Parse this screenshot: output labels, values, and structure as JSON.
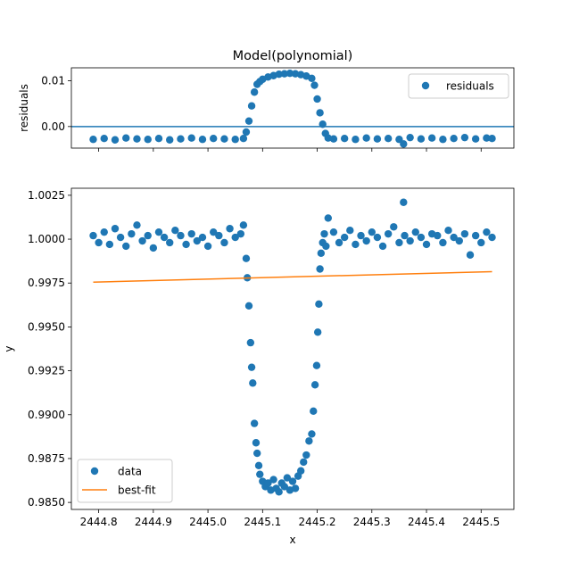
{
  "chart_data": [
    {
      "type": "scatter",
      "title": "Model(polynomial)",
      "xlabel": "",
      "ylabel": "residuals",
      "xlim": [
        2444.75,
        2445.56
      ],
      "ylim": [
        -0.0047,
        0.0128
      ],
      "x_ticks": [
        2444.8,
        2444.9,
        2445.0,
        2445.1,
        2445.2,
        2445.3,
        2445.4,
        2445.5
      ],
      "x_tick_labels_visible": false,
      "y_ticks": [
        0.0,
        0.01
      ],
      "y_tick_labels": [
        "0.00",
        "0.01"
      ],
      "grid": false,
      "legend": {
        "placement": "upper-right",
        "entries": [
          "residuals"
        ]
      },
      "zero_line": {
        "y": 0.0,
        "color": "#1f77b4"
      },
      "series": [
        {
          "name": "residuals",
          "kind": "markers",
          "color": "#1f77b4",
          "x": [
            2444.79,
            2444.81,
            2444.83,
            2444.85,
            2444.87,
            2444.89,
            2444.91,
            2444.93,
            2444.95,
            2444.97,
            2444.99,
            2445.01,
            2445.03,
            2445.05,
            2445.065,
            2445.07,
            2445.075,
            2445.08,
            2445.085,
            2445.09,
            2445.095,
            2445.1,
            2445.11,
            2445.12,
            2445.13,
            2445.14,
            2445.15,
            2445.16,
            2445.17,
            2445.18,
            2445.19,
            2445.195,
            2445.2,
            2445.205,
            2445.21,
            2445.215,
            2445.22,
            2445.23,
            2445.25,
            2445.27,
            2445.29,
            2445.31,
            2445.33,
            2445.35,
            2445.358,
            2445.37,
            2445.39,
            2445.41,
            2445.43,
            2445.45,
            2445.47,
            2445.49,
            2445.51,
            2445.52
          ],
          "y": [
            -0.0028,
            -0.0026,
            -0.0029,
            -0.0025,
            -0.0027,
            -0.0028,
            -0.0026,
            -0.0029,
            -0.0027,
            -0.0025,
            -0.0028,
            -0.0026,
            -0.0027,
            -0.0028,
            -0.0026,
            -0.0012,
            0.0012,
            0.0045,
            0.0075,
            0.0092,
            0.0098,
            0.0103,
            0.0108,
            0.0111,
            0.0114,
            0.0115,
            0.0116,
            0.0115,
            0.0113,
            0.011,
            0.0105,
            0.009,
            0.006,
            0.003,
            0.0005,
            -0.0015,
            -0.0025,
            -0.0027,
            -0.0026,
            -0.0028,
            -0.0025,
            -0.0027,
            -0.0026,
            -0.0028,
            -0.0038,
            -0.0024,
            -0.0027,
            -0.0025,
            -0.0028,
            -0.0026,
            -0.0024,
            -0.0027,
            -0.0025,
            -0.0026
          ]
        }
      ]
    },
    {
      "type": "scatter",
      "title": "",
      "xlabel": "x",
      "ylabel": "y",
      "xlim": [
        2444.75,
        2445.56
      ],
      "ylim": [
        0.9846,
        1.0029
      ],
      "x_ticks": [
        2444.8,
        2444.9,
        2445.0,
        2445.1,
        2445.2,
        2445.3,
        2445.4,
        2445.5
      ],
      "x_tick_labels": [
        "2444.8",
        "2444.9",
        "2445.0",
        "2445.1",
        "2445.2",
        "2445.3",
        "2445.4",
        "2445.5"
      ],
      "y_ticks": [
        0.985,
        0.9875,
        0.99,
        0.9925,
        0.995,
        0.9975,
        1.0,
        1.0025
      ],
      "y_tick_labels": [
        "0.9850",
        "0.9875",
        "0.9900",
        "0.9925",
        "0.9950",
        "0.9975",
        "1.0000",
        "1.0025"
      ],
      "grid": false,
      "legend": {
        "placement": "lower-left",
        "entries": [
          "data",
          "best-fit"
        ]
      },
      "series": [
        {
          "name": "data",
          "kind": "markers",
          "color": "#1f77b4",
          "x": [
            2444.79,
            2444.8,
            2444.81,
            2444.82,
            2444.83,
            2444.84,
            2444.85,
            2444.86,
            2444.87,
            2444.88,
            2444.89,
            2444.9,
            2444.91,
            2444.92,
            2444.93,
            2444.94,
            2444.95,
            2444.96,
            2444.97,
            2444.98,
            2444.99,
            2445.0,
            2445.01,
            2445.02,
            2445.03,
            2445.04,
            2445.05,
            2445.06,
            2445.065,
            2445.07,
            2445.072,
            2445.075,
            2445.078,
            2445.08,
            2445.082,
            2445.085,
            2445.088,
            2445.09,
            2445.093,
            2445.095,
            2445.1,
            2445.105,
            2445.11,
            2445.115,
            2445.12,
            2445.125,
            2445.13,
            2445.135,
            2445.14,
            2445.145,
            2445.15,
            2445.155,
            2445.16,
            2445.165,
            2445.17,
            2445.175,
            2445.18,
            2445.185,
            2445.19,
            2445.193,
            2445.196,
            2445.199,
            2445.201,
            2445.203,
            2445.205,
            2445.207,
            2445.21,
            2445.213,
            2445.216,
            2445.22,
            2445.23,
            2445.24,
            2445.25,
            2445.26,
            2445.27,
            2445.28,
            2445.29,
            2445.3,
            2445.31,
            2445.32,
            2445.33,
            2445.34,
            2445.35,
            2445.358,
            2445.36,
            2445.37,
            2445.38,
            2445.39,
            2445.4,
            2445.41,
            2445.42,
            2445.43,
            2445.44,
            2445.45,
            2445.46,
            2445.47,
            2445.48,
            2445.49,
            2445.5,
            2445.51,
            2445.52
          ],
          "y": [
            1.0002,
            0.9998,
            1.0004,
            0.9997,
            1.0006,
            1.0001,
            0.9996,
            1.0003,
            1.0008,
            0.9999,
            1.0002,
            0.9995,
            1.0004,
            1.0001,
            0.9998,
            1.0005,
            1.0002,
            0.9997,
            1.0003,
            0.9999,
            1.0001,
            0.9996,
            1.0004,
            1.0002,
            0.9998,
            1.0006,
            1.0001,
            1.0003,
            1.0008,
            0.9989,
            0.9978,
            0.9962,
            0.9941,
            0.9927,
            0.9918,
            0.9895,
            0.9884,
            0.9878,
            0.9871,
            0.9866,
            0.9862,
            0.9859,
            0.9861,
            0.9857,
            0.9863,
            0.9858,
            0.9856,
            0.9861,
            0.9859,
            0.9864,
            0.9857,
            0.9862,
            0.9858,
            0.9865,
            0.9868,
            0.9873,
            0.9877,
            0.9885,
            0.9889,
            0.9902,
            0.9917,
            0.9928,
            0.9947,
            0.9963,
            0.9983,
            0.9992,
            0.9998,
            1.0003,
            0.9996,
            1.0012,
            1.0004,
            0.9998,
            1.0001,
            1.0005,
            0.9997,
            1.0002,
            0.9999,
            1.0004,
            1.0001,
            0.9996,
            1.0003,
            1.0007,
            0.9998,
            1.0021,
            1.0002,
            0.9999,
            1.0004,
            1.0001,
            0.9997,
            1.0003,
            1.0002,
            0.9998,
            1.0005,
            1.0001,
            0.9999,
            1.0003,
            0.9991,
            1.0002,
            0.9998,
            1.0004,
            1.0001
          ]
        },
        {
          "name": "best-fit",
          "kind": "line",
          "color": "#ff7f0e",
          "x": [
            2444.79,
            2445.52
          ],
          "y": [
            0.99755,
            0.99815
          ]
        }
      ]
    }
  ]
}
